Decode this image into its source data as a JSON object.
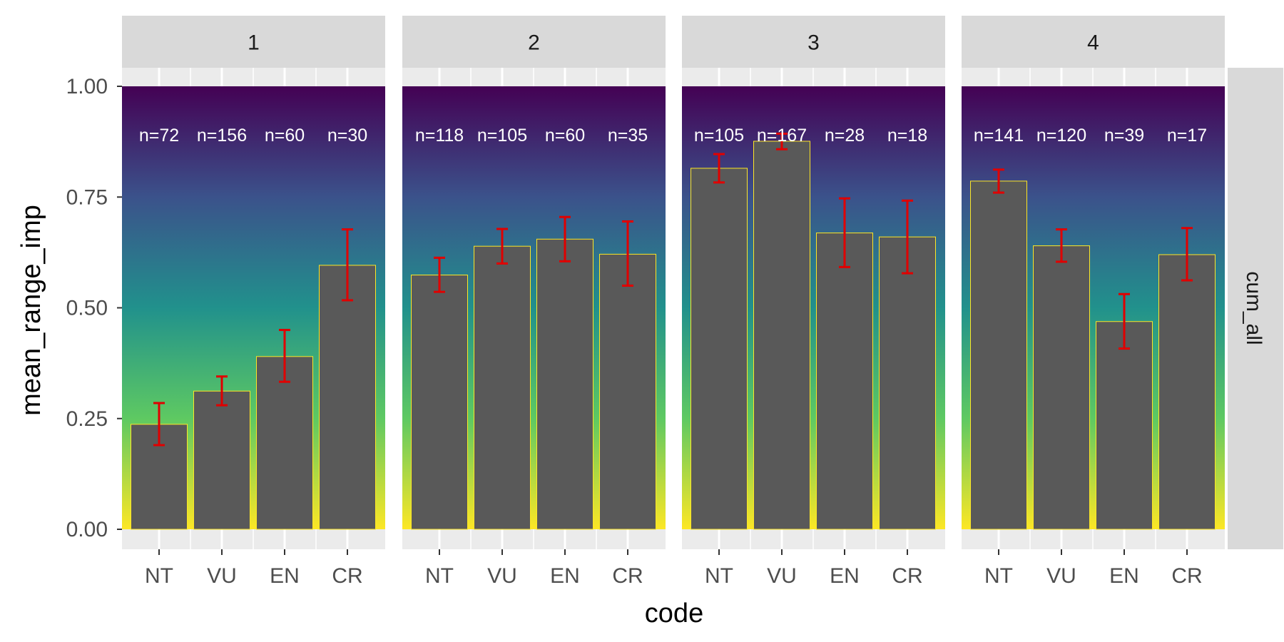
{
  "chart_data": {
    "type": "bar",
    "xlabel": "code",
    "ylabel": "mean_range_imp",
    "row_strip": "cum_all",
    "ylim": [
      0,
      1
    ],
    "y_ticks": [
      "0.00",
      "0.25",
      "0.50",
      "0.75",
      "1.00"
    ],
    "y_tick_values": [
      0,
      0.25,
      0.5,
      0.75,
      1.0
    ],
    "categories": [
      "NT",
      "VU",
      "EN",
      "CR"
    ],
    "grid": true,
    "background_gradient": [
      "#440154",
      "#3b528b",
      "#21918c",
      "#5ec962",
      "#fde725"
    ],
    "bar_fill": "#595959",
    "bar_outline": "#fde725",
    "errorbar_color": "#e00000",
    "facets": [
      {
        "label": "1",
        "values": [
          0.237,
          0.312,
          0.39,
          0.596
        ],
        "err_low": [
          0.19,
          0.28,
          0.333,
          0.517
        ],
        "err_high": [
          0.285,
          0.345,
          0.45,
          0.677
        ],
        "n_labels": [
          "n=72",
          "n=156",
          "n=60",
          "n=30"
        ]
      },
      {
        "label": "2",
        "values": [
          0.574,
          0.639,
          0.655,
          0.621
        ],
        "err_low": [
          0.536,
          0.6,
          0.605,
          0.55
        ],
        "err_high": [
          0.613,
          0.678,
          0.705,
          0.695
        ],
        "n_labels": [
          "n=118",
          "n=105",
          "n=60",
          "n=35"
        ]
      },
      {
        "label": "3",
        "values": [
          0.815,
          0.876,
          0.669,
          0.66
        ],
        "err_low": [
          0.783,
          0.858,
          0.592,
          0.578
        ],
        "err_high": [
          0.847,
          0.893,
          0.747,
          0.742
        ],
        "n_labels": [
          "n=105",
          "n=167",
          "n=28",
          "n=18"
        ]
      },
      {
        "label": "4",
        "values": [
          0.786,
          0.64,
          0.469,
          0.62
        ],
        "err_low": [
          0.76,
          0.604,
          0.408,
          0.562
        ],
        "err_high": [
          0.812,
          0.677,
          0.531,
          0.68
        ],
        "n_labels": [
          "n=141",
          "n=120",
          "n=39",
          "n=17"
        ]
      }
    ]
  }
}
